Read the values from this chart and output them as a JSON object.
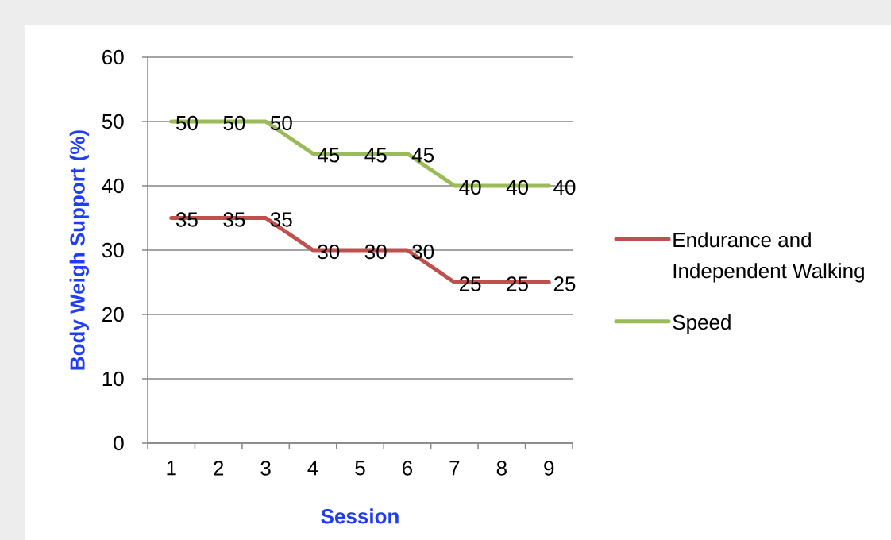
{
  "chart_data": {
    "type": "line",
    "xlabel": "Session",
    "ylabel": "Body Weigh Support (%)",
    "categories": [
      "1",
      "2",
      "3",
      "4",
      "5",
      "6",
      "7",
      "8",
      "9"
    ],
    "series": [
      {
        "name": "Endurance and Independent Walking",
        "color": "#c0504d",
        "values": [
          35,
          35,
          35,
          30,
          30,
          30,
          25,
          25,
          25
        ]
      },
      {
        "name": "Speed",
        "color": "#9bbb59",
        "values": [
          50,
          50,
          50,
          45,
          45,
          45,
          40,
          40,
          40
        ]
      }
    ],
    "ylim": [
      0,
      60
    ],
    "yticks": [
      0,
      10,
      20,
      30,
      40,
      50,
      60
    ],
    "grid": "y",
    "legend": "right",
    "data_labels": true,
    "line_style": "solid"
  }
}
